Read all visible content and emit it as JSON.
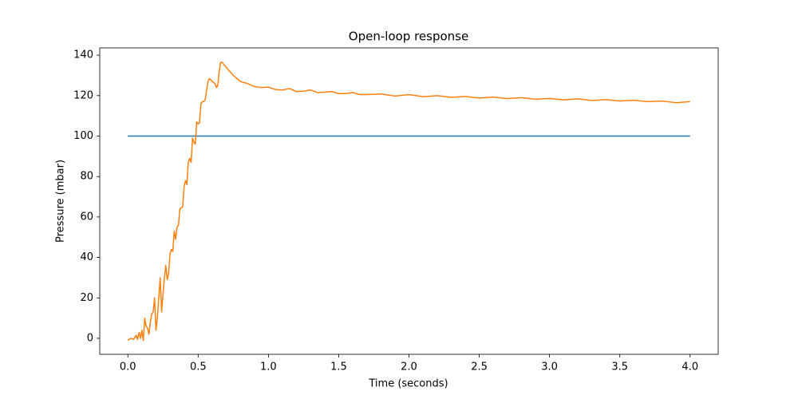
{
  "chart_data": {
    "type": "line",
    "title": "Open-loop response",
    "x_label": "Time (seconds)",
    "y_label": "Pressure (mbar)",
    "xlim": [
      -0.2,
      4.2
    ],
    "ylim": [
      -7.9,
      143.6
    ],
    "xticks": [
      {
        "value": 0,
        "label": "0.0"
      },
      {
        "value": 0.5,
        "label": "0.5"
      },
      {
        "value": 1,
        "label": "1.0"
      },
      {
        "value": 1.5,
        "label": "1.5"
      },
      {
        "value": 2,
        "label": "2.0"
      },
      {
        "value": 2.5,
        "label": "2.5"
      },
      {
        "value": 3,
        "label": "3.0"
      },
      {
        "value": 3.5,
        "label": "3.5"
      },
      {
        "value": 4,
        "label": "4.0"
      }
    ],
    "yticks": [
      0,
      20,
      40,
      60,
      80,
      100,
      120,
      140
    ],
    "grid": false,
    "series": [
      {
        "color": "#1f77b4",
        "x": [
          0,
          4
        ],
        "values": [
          100,
          100
        ]
      },
      {
        "color": "#ff7f0e",
        "x": [
          0,
          0.02,
          0.04,
          0.06,
          0.07,
          0.08,
          0.09,
          0.1,
          0.11,
          0.12,
          0.13,
          0.14,
          0.15,
          0.16,
          0.17,
          0.18,
          0.19,
          0.2,
          0.21,
          0.22,
          0.23,
          0.24,
          0.25,
          0.26,
          0.27,
          0.28,
          0.29,
          0.3,
          0.31,
          0.32,
          0.33,
          0.34,
          0.35,
          0.36,
          0.37,
          0.38,
          0.39,
          0.4,
          0.41,
          0.42,
          0.43,
          0.44,
          0.45,
          0.46,
          0.47,
          0.48,
          0.49,
          0.5,
          0.51,
          0.52,
          0.53,
          0.54,
          0.55,
          0.57,
          0.58,
          0.6,
          0.62,
          0.63,
          0.64,
          0.65,
          0.66,
          0.67,
          0.7,
          0.75,
          0.8,
          0.85,
          0.9,
          0.95,
          1.0,
          1.05,
          1.1,
          1.15,
          1.2,
          1.25,
          1.3,
          1.35,
          1.4,
          1.45,
          1.5,
          1.55,
          1.6,
          1.65,
          1.7,
          1.8,
          1.9,
          2.0,
          2.1,
          2.2,
          2.3,
          2.4,
          2.5,
          2.6,
          2.7,
          2.8,
          2.9,
          3.0,
          3.1,
          3.2,
          3.3,
          3.4,
          3.5,
          3.6,
          3.7,
          3.8,
          3.9,
          4.0
        ],
        "values": [
          -1,
          0,
          -0.5,
          1.5,
          -0.5,
          3,
          0,
          4,
          -1,
          10,
          6,
          5,
          2,
          8,
          12,
          13,
          20,
          4,
          10,
          20,
          30,
          13,
          22,
          30,
          36,
          29,
          32,
          42,
          44,
          43,
          53,
          49,
          55,
          56,
          64,
          64.5,
          65,
          75,
          78,
          76,
          87,
          89,
          87,
          99,
          97,
          96,
          107,
          106,
          106.5,
          116,
          117,
          117,
          118,
          127,
          128.5,
          127,
          126,
          124,
          125,
          132,
          136.5,
          136.5,
          134,
          130,
          127,
          126,
          124.5,
          124,
          124.2,
          123,
          122.8,
          123.5,
          122,
          122.2,
          122.8,
          121.5,
          121.7,
          122,
          121,
          121,
          121.5,
          120.5,
          120.5,
          120.8,
          119.8,
          120.5,
          119.5,
          120,
          119.2,
          119.6,
          118.8,
          119.3,
          118.5,
          119,
          118.2,
          118.6,
          117.9,
          118.4,
          117.6,
          118,
          117.3,
          117.7,
          117,
          117.3,
          116.5,
          117
        ]
      }
    ]
  }
}
